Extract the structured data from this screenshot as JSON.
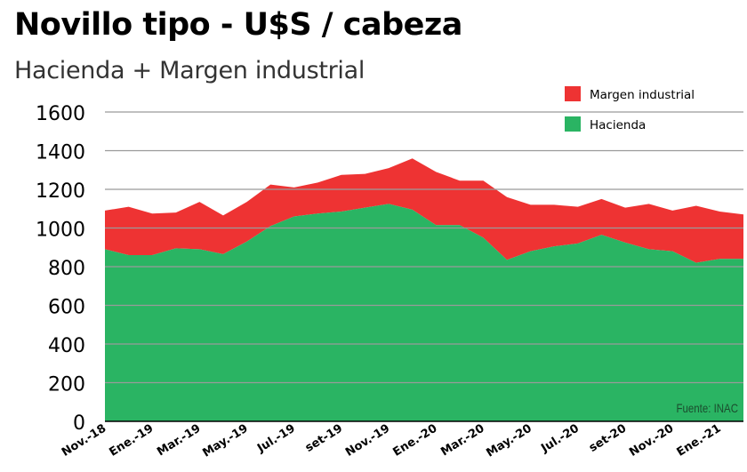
{
  "title": "Novillo tipo - U$S / cabeza",
  "subtitle": "Hacienda + Margen industrial",
  "source": "Fuente: INAC",
  "colors": {
    "hacienda": "#2ab463",
    "margen": "#ee3333",
    "grid": "#9a9a9a"
  },
  "chart_data": {
    "type": "area",
    "stacked": true,
    "title": "Novillo tipo - U$S / cabeza",
    "subtitle": "Hacienda + Margen industrial",
    "ylim": [
      0,
      1600
    ],
    "yticks": [
      "0",
      "200",
      "400",
      "600",
      "800",
      "1000",
      "1200",
      "1400",
      "1600"
    ],
    "grid": true,
    "legend_position": "top-right",
    "x": [
      "Nov.-18",
      "Dic.-18",
      "Ene.-19",
      "Feb.-19",
      "Mar.-19",
      "Abr.-19",
      "May.-19",
      "Jun.-19",
      "Jul.-19",
      "Ago.-19",
      "set-19",
      "Oct.-19",
      "Nov.-19",
      "Dic.-19",
      "Ene.-20",
      "Feb.-20",
      "Mar.-20",
      "Abr.-20",
      "May.-20",
      "Jun.-20",
      "Jul.-20",
      "Ago.-20",
      "set-20",
      "Oct.-20",
      "Nov.-20",
      "Dic.-20",
      "Ene.-21",
      "Feb.-21"
    ],
    "xtick_labels": [
      "Nov.-18",
      "Ene.-19",
      "Mar.-19",
      "May.-19",
      "Jul.-19",
      "set-19",
      "Nov.-19",
      "Ene.-20",
      "Mar.-20",
      "May.-20",
      "Jul.-20",
      "set-20",
      "Nov.-20",
      "Ene.-21"
    ],
    "series": [
      {
        "name": "Hacienda",
        "color": "#2ab463",
        "values": [
          890,
          860,
          860,
          895,
          890,
          865,
          930,
          1010,
          1060,
          1075,
          1085,
          1105,
          1125,
          1095,
          1015,
          1015,
          950,
          835,
          880,
          905,
          920,
          965,
          925,
          890,
          880,
          820,
          840,
          840
        ]
      },
      {
        "name": "Margen industrial",
        "color": "#ee3333",
        "values": [
          200,
          250,
          215,
          185,
          245,
          200,
          205,
          215,
          150,
          160,
          190,
          175,
          185,
          265,
          275,
          230,
          295,
          325,
          240,
          215,
          190,
          185,
          180,
          235,
          210,
          295,
          245,
          230
        ]
      }
    ]
  }
}
